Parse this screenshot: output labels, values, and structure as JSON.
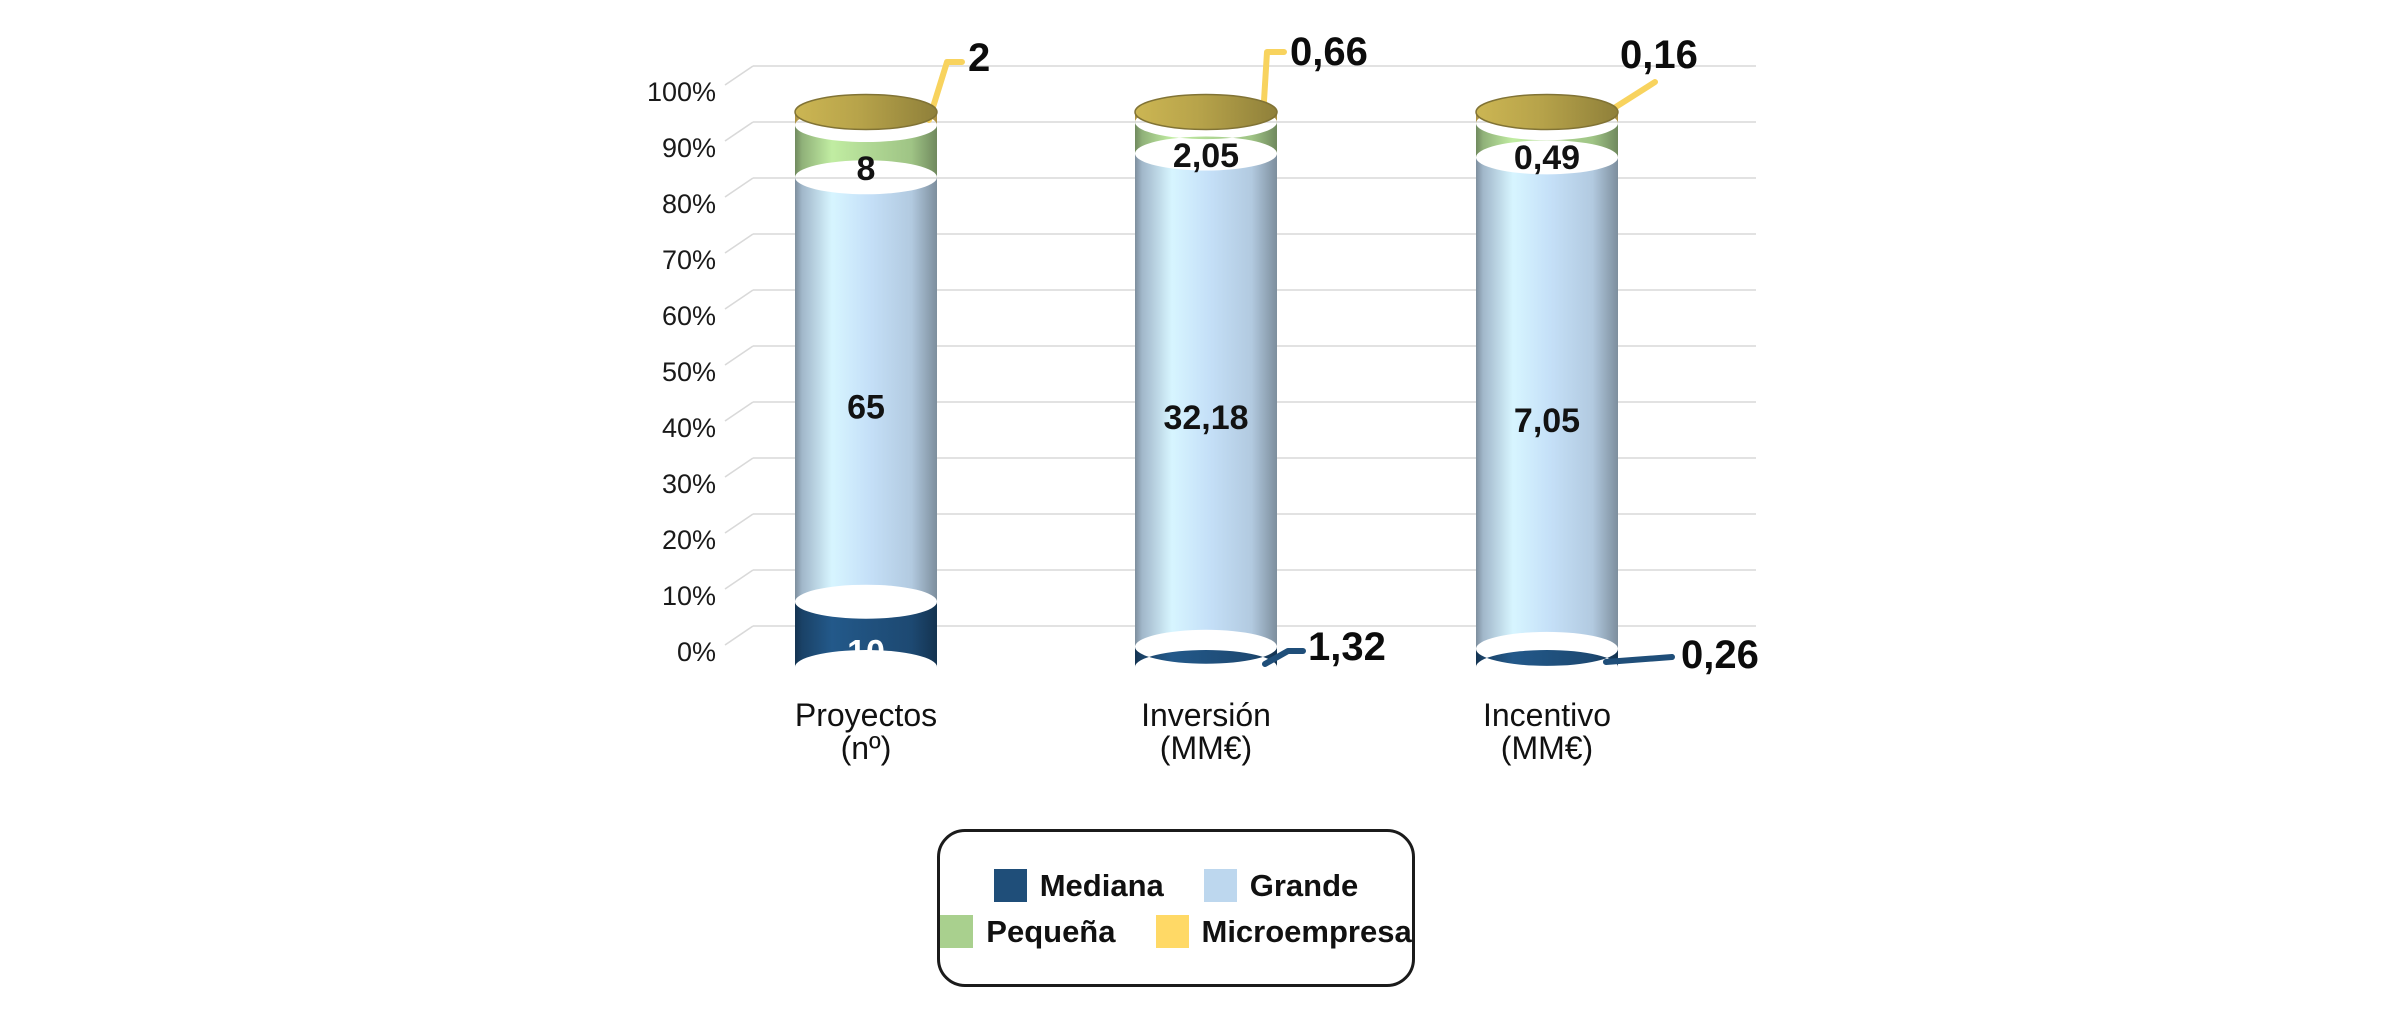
{
  "chart_data": {
    "type": "bar",
    "subtype": "3d-cylinder-stacked-100-percent",
    "title": "",
    "categories": [
      [
        "Proyectos",
        "(nº)"
      ],
      [
        "Inversión",
        "(MM€)"
      ],
      [
        "Incentivo",
        "(MM€)"
      ]
    ],
    "series": [
      {
        "name": "Mediana",
        "color": "#1F4E79",
        "values": [
          10,
          1.32,
          0.26
        ],
        "display_labels": [
          "10",
          "1,32",
          "0,26"
        ]
      },
      {
        "name": "Grande",
        "color": "#BDD7EE",
        "values": [
          65,
          32.18,
          7.05
        ],
        "display_labels": [
          "65",
          "32,18",
          "7,05"
        ]
      },
      {
        "name": "Pequeña",
        "color": "#A9D08E",
        "values": [
          8,
          2.05,
          0.49
        ],
        "display_labels": [
          "8",
          "2,05",
          "0,49"
        ]
      },
      {
        "name": "Microempresa",
        "color": "#FFD966",
        "values": [
          2,
          0.66,
          0.16
        ],
        "display_labels": [
          "2",
          "0,66",
          "0,16"
        ]
      }
    ],
    "y_axis": {
      "ticks": [
        "0%",
        "10%",
        "20%",
        "30%",
        "40%",
        "50%",
        "60%",
        "70%",
        "80%",
        "90%",
        "100%"
      ],
      "min": 0,
      "max": 100,
      "gridlines": true
    },
    "legend_position": "bottom-center",
    "decimal_separator": ","
  },
  "legend": {
    "items": [
      {
        "label": "Mediana",
        "color": "#1F4E79"
      },
      {
        "label": "Grande",
        "color": "#BDD7EE"
      },
      {
        "label": "Pequeña",
        "color": "#A9D08E"
      },
      {
        "label": "Microempresa",
        "color": "#FFD966"
      }
    ]
  },
  "colors": {
    "background": "#FFFFFF",
    "gridline": "#D9D9D9",
    "cylinder_top_cap": "#B3A049",
    "callout_microempresa": "#F8D35E",
    "callout_mediana": "#1F4E79",
    "label_dark": "#121212",
    "label_light": "#FFFFFF"
  }
}
